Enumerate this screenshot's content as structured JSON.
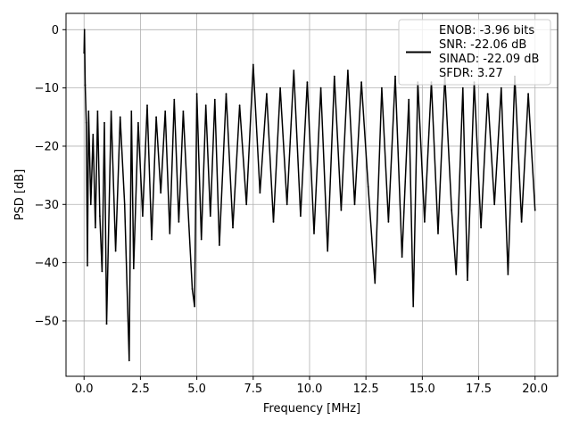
{
  "chart_data": {
    "type": "line",
    "title": "",
    "xlabel": "Frequency [MHz]",
    "ylabel": "PSD [dB]",
    "xlim": [
      -0.8,
      21.0
    ],
    "ylim": [
      -59.5,
      2.8
    ],
    "x_ticks": [
      0.0,
      2.5,
      5.0,
      7.5,
      10.0,
      12.5,
      15.0,
      17.5,
      20.0
    ],
    "x_tick_labels": [
      "0.0",
      "2.5",
      "5.0",
      "7.5",
      "10.0",
      "12.5",
      "15.0",
      "17.5",
      "20.0"
    ],
    "y_ticks": [
      0,
      -10,
      -20,
      -30,
      -40,
      -50
    ],
    "y_tick_labels": [
      "0",
      "−10",
      "−20",
      "−30",
      "−40",
      "−50"
    ],
    "grid": true,
    "legend_position": "top-right",
    "line_color": "#000000",
    "series": [
      {
        "name": "ENOB: -3.96 bits\nSNR: -22.06 dB\nSINAD: -22.09 dB\nSFDR: 3.27",
        "x": [
          0.0,
          0.02,
          0.05,
          0.1,
          0.15,
          0.2,
          0.3,
          0.4,
          0.5,
          0.6,
          0.7,
          0.8,
          0.9,
          1.0,
          1.2,
          1.4,
          1.6,
          1.8,
          2.0,
          2.1,
          2.2,
          2.4,
          2.6,
          2.8,
          3.0,
          3.2,
          3.4,
          3.6,
          3.8,
          4.0,
          4.2,
          4.4,
          4.6,
          4.8,
          4.9,
          5.0,
          5.2,
          5.4,
          5.6,
          5.8,
          6.0,
          6.3,
          6.6,
          6.9,
          7.2,
          7.5,
          7.8,
          8.1,
          8.4,
          8.7,
          9.0,
          9.3,
          9.6,
          9.9,
          10.2,
          10.5,
          10.8,
          11.1,
          11.4,
          11.7,
          12.0,
          12.3,
          12.6,
          12.9,
          13.2,
          13.5,
          13.8,
          14.1,
          14.4,
          14.6,
          14.8,
          15.1,
          15.4,
          15.7,
          16.0,
          16.3,
          16.5,
          16.8,
          17.0,
          17.3,
          17.6,
          17.9,
          18.2,
          18.5,
          18.8,
          19.1,
          19.4,
          19.7,
          20.0
        ],
        "y": [
          -4.0,
          0.0,
          -9.5,
          -16.0,
          -40.5,
          -14.0,
          -30.0,
          -18.0,
          -34.0,
          -14.0,
          -32.0,
          -41.5,
          -16.0,
          -50.5,
          -14.0,
          -38.0,
          -15.0,
          -30.0,
          -56.8,
          -14.0,
          -41.0,
          -16.0,
          -32.0,
          -13.0,
          -36.0,
          -15.0,
          -28.0,
          -14.0,
          -35.0,
          -12.0,
          -33.0,
          -14.0,
          -30.0,
          -44.5,
          -47.5,
          -11.0,
          -36.0,
          -13.0,
          -32.0,
          -12.0,
          -37.0,
          -11.0,
          -34.0,
          -13.0,
          -30.0,
          -6.0,
          -28.0,
          -11.0,
          -33.0,
          -10.0,
          -30.0,
          -7.0,
          -32.0,
          -9.0,
          -35.0,
          -10.0,
          -38.0,
          -8.0,
          -31.0,
          -7.0,
          -30.0,
          -9.0,
          -27.0,
          -43.5,
          -10.0,
          -33.0,
          -8.0,
          -39.0,
          -12.0,
          -47.5,
          -9.0,
          -33.0,
          -9.0,
          -35.0,
          -8.0,
          -31.0,
          -42.0,
          -10.0,
          -43.0,
          -9.0,
          -34.0,
          -11.0,
          -30.0,
          -10.0,
          -42.0,
          -8.0,
          -33.0,
          -11.0,
          -31.0
        ]
      }
    ],
    "legend_lines": [
      "ENOB: -3.96 bits",
      "SNR: -22.06 dB",
      "SINAD: -22.09 dB",
      "SFDR: 3.27"
    ]
  }
}
